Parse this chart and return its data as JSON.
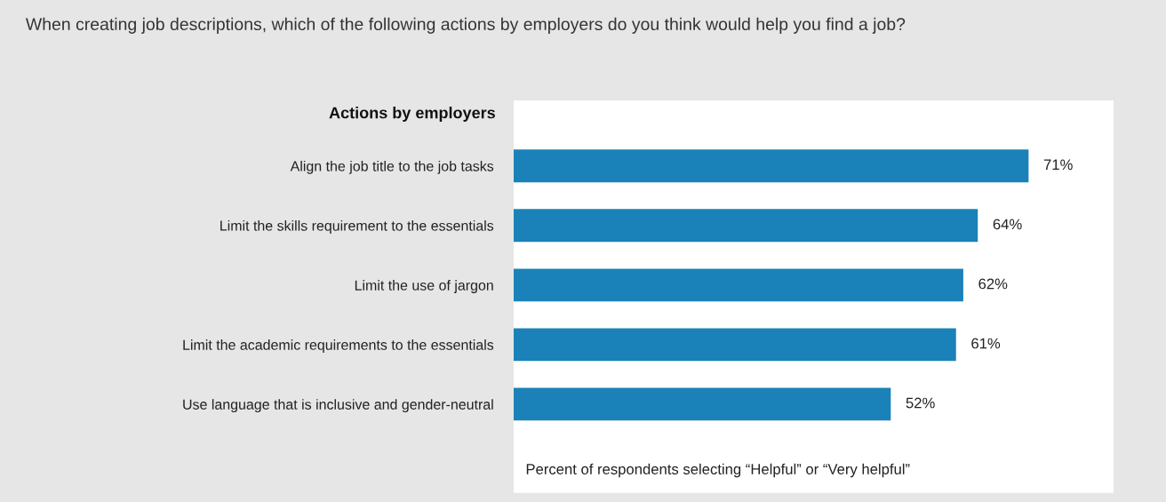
{
  "chart_data": {
    "type": "bar",
    "orientation": "horizontal",
    "title": "When creating job descriptions, which of the following actions by employers do you think would help you find a job?",
    "ylabel": "Actions by employers",
    "xlabel": "Percent of respondents selecting “Helpful” or “Very helpful”",
    "categories": [
      "Align the job title to the job tasks",
      "Limit the skills requirement to the essentials",
      "Limit the use of jargon",
      "Limit the academic requirements to the essentials",
      "Use language that is inclusive and gender-neutral"
    ],
    "values": [
      71,
      64,
      62,
      61,
      52
    ],
    "value_labels": [
      "71%",
      "64%",
      "62%",
      "61%",
      "52%"
    ],
    "color": "#1a82b8",
    "grid": false,
    "legend": false,
    "tick_labels": "y"
  }
}
